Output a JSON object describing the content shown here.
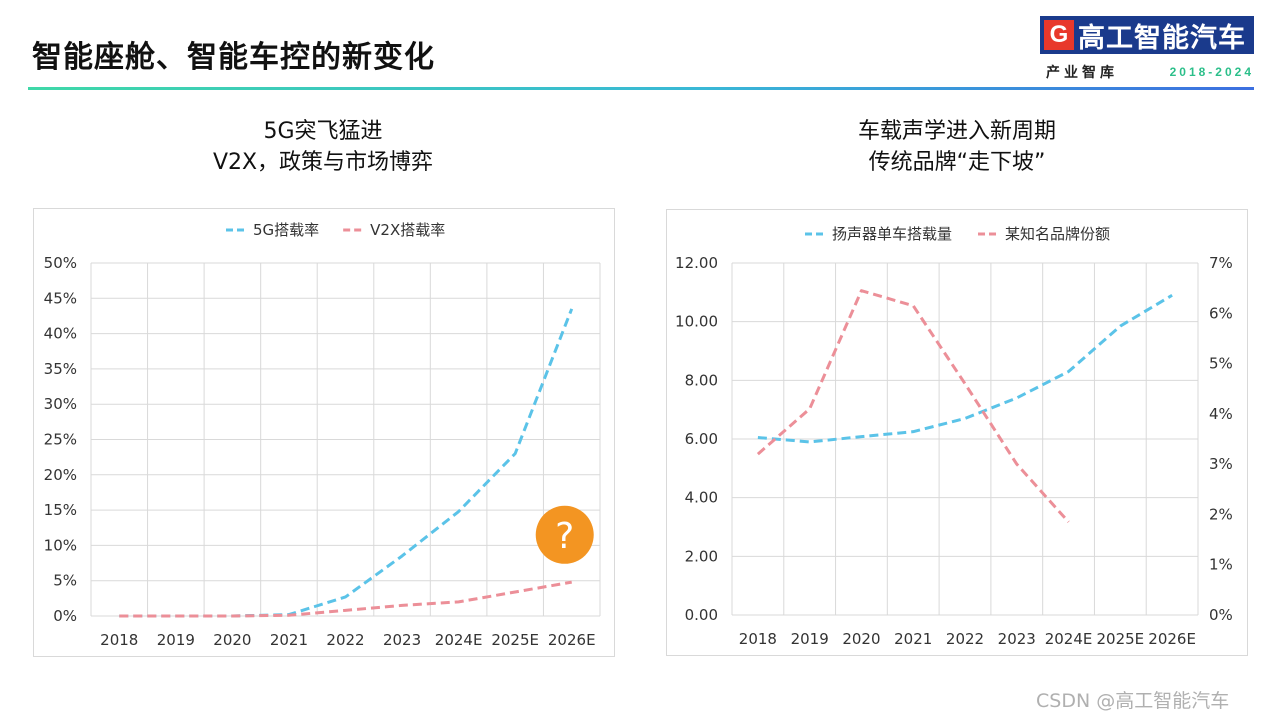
{
  "page": {
    "title": "智能座舱、智能车控的新变化",
    "watermark": "CSDN @高工智能汽车"
  },
  "logo": {
    "mark": "G",
    "name": "高工智能汽车",
    "sub_name": "产业智库",
    "years": "2018-2024"
  },
  "colors": {
    "series_blue": "#5bc3e8",
    "series_pink": "#ec8f98",
    "badge": "#f39522",
    "grid": "#d9d9d9"
  },
  "chart_data": [
    {
      "type": "line",
      "heading": [
        "5G突飞猛进",
        "V2X，政策与市场博弈"
      ],
      "categories": [
        "2018",
        "2019",
        "2020",
        "2021",
        "2022",
        "2023",
        "2024E",
        "2025E",
        "2026E"
      ],
      "series": [
        {
          "name": "5G搭载率",
          "axis": "left",
          "line_style": "dashed",
          "values": [
            0,
            0,
            0,
            0.2,
            2.7,
            8.5,
            14.8,
            23,
            43.5
          ]
        },
        {
          "name": "V2X搭载率",
          "axis": "left",
          "line_style": "dashed",
          "values": [
            0,
            0,
            0,
            0.1,
            0.8,
            1.5,
            2.0,
            3.4,
            4.8
          ]
        }
      ],
      "y_left": {
        "min": 0,
        "max": 50,
        "step": 5,
        "suffix": "%",
        "decimals": 0
      },
      "legend_position": "top-center",
      "grid": true,
      "annotation": {
        "text": "?",
        "shape": "circle",
        "meaning": "uncertain outlook"
      }
    },
    {
      "type": "line",
      "heading": [
        "车载声学进入新周期",
        "传统品牌“走下坡”"
      ],
      "categories": [
        "2018",
        "2019",
        "2020",
        "2021",
        "2022",
        "2023",
        "2024E",
        "2025E",
        "2026E"
      ],
      "series": [
        {
          "name": "扬声器单车搭载量",
          "axis": "left",
          "line_style": "dashed",
          "values": [
            6.05,
            5.9,
            6.08,
            6.25,
            6.7,
            7.4,
            8.3,
            9.85,
            10.9
          ]
        },
        {
          "name": "某知名品牌份额",
          "axis": "right",
          "line_style": "dashed",
          "values": [
            3.2,
            4.1,
            6.45,
            6.15,
            4.6,
            3.0,
            1.85,
            null,
            null
          ]
        }
      ],
      "y_left": {
        "min": 0,
        "max": 12,
        "step": 2,
        "suffix": "",
        "decimals": 2
      },
      "y_right": {
        "min": 0,
        "max": 7,
        "step": 1,
        "suffix": "%",
        "decimals": 0
      },
      "legend_position": "top-center",
      "grid": true
    }
  ]
}
